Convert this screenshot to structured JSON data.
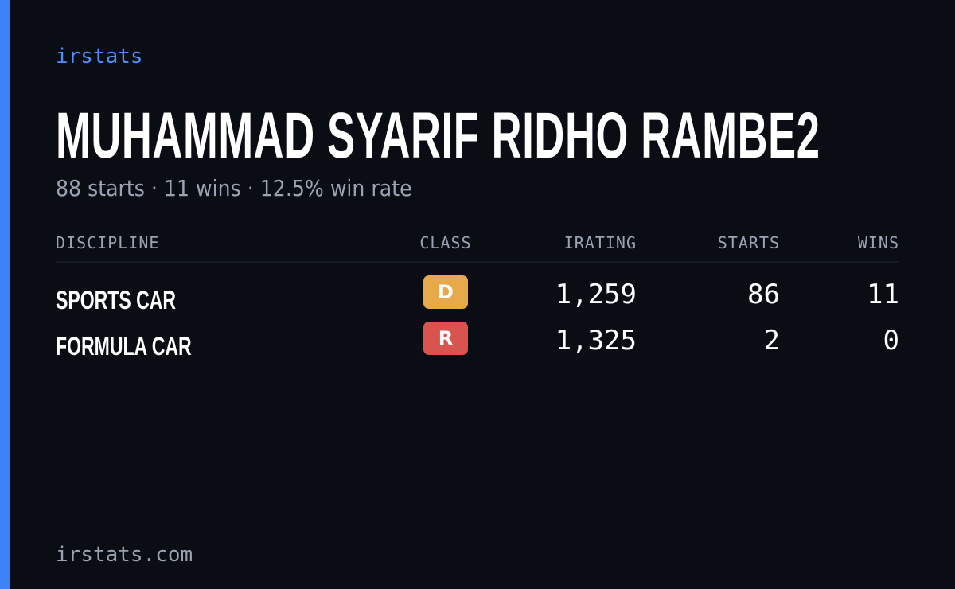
{
  "brand": "irstats",
  "title": "MUHAMMAD SYARIF RIDHO RAMBE2",
  "subtitle": "88 starts · 11 wins · 12.5% win rate",
  "table": {
    "headers": [
      "DISCIPLINE",
      "CLASS",
      "IRATING",
      "STARTS",
      "WINS"
    ],
    "rows": [
      [
        "SPORTS CAR",
        "D",
        "1,259",
        "86",
        "11"
      ],
      [
        "FORMULA CAR",
        "R",
        "1,325",
        "2",
        "0"
      ]
    ]
  },
  "footer": "irstats.com"
}
